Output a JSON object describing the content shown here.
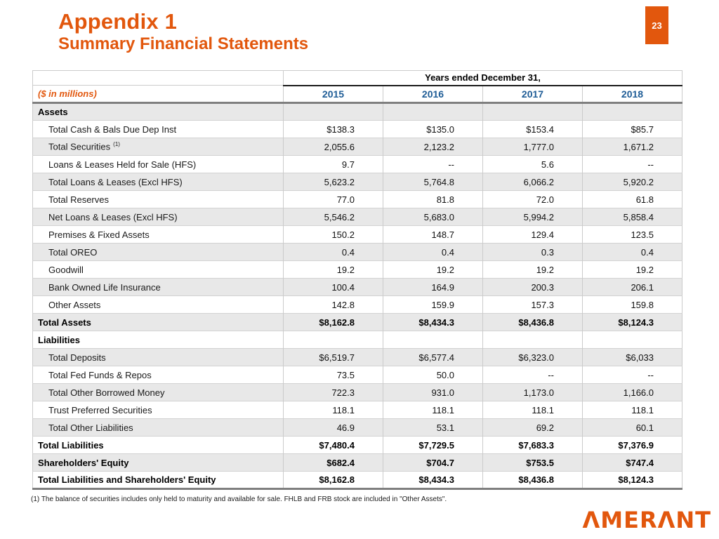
{
  "header": {
    "title_line1": "Appendix 1",
    "title_line2": "Summary Financial Statements",
    "page_number": "23"
  },
  "colors": {
    "accent_orange": "#E2570D",
    "year_blue": "#1E5C96",
    "row_shade": "#E8E8E8"
  },
  "table": {
    "span_header": "Years ended December 31,",
    "unit_label": "($ in millions)",
    "years": [
      "2015",
      "2016",
      "2017",
      "2018"
    ],
    "rows": [
      {
        "label": "Assets",
        "type": "section",
        "shaded": true,
        "values": [
          "",
          "",
          "",
          ""
        ]
      },
      {
        "label": "Total Cash & Bals Due Dep Inst",
        "type": "detail",
        "shaded": false,
        "values": [
          "$138.3",
          "$135.0",
          "$153.4",
          "$85.7"
        ]
      },
      {
        "label": "Total Securities",
        "sup": "(1)",
        "type": "detail",
        "shaded": true,
        "values": [
          "2,055.6",
          "2,123.2",
          "1,777.0",
          "1,671.2"
        ]
      },
      {
        "label": "Loans & Leases Held for Sale (HFS)",
        "type": "detail",
        "shaded": false,
        "values": [
          "9.7",
          "--",
          "5.6",
          "--"
        ]
      },
      {
        "label": "Total Loans & Leases (Excl HFS)",
        "type": "detail",
        "shaded": true,
        "values": [
          "5,623.2",
          "5,764.8",
          "6,066.2",
          "5,920.2"
        ]
      },
      {
        "label": "Total Reserves",
        "type": "detail",
        "shaded": false,
        "values": [
          "77.0",
          "81.8",
          "72.0",
          "61.8"
        ]
      },
      {
        "label": "Net Loans & Leases (Excl HFS)",
        "type": "detail",
        "shaded": true,
        "values": [
          "5,546.2",
          "5,683.0",
          "5,994.2",
          "5,858.4"
        ]
      },
      {
        "label": "Premises & Fixed Assets",
        "type": "detail",
        "shaded": false,
        "values": [
          "150.2",
          "148.7",
          "129.4",
          "123.5"
        ]
      },
      {
        "label": "Total OREO",
        "type": "detail",
        "shaded": true,
        "values": [
          "0.4",
          "0.4",
          "0.3",
          "0.4"
        ]
      },
      {
        "label": "Goodwill",
        "type": "detail",
        "shaded": false,
        "values": [
          "19.2",
          "19.2",
          "19.2",
          "19.2"
        ]
      },
      {
        "label": "Bank Owned Life Insurance",
        "type": "detail",
        "shaded": true,
        "values": [
          "100.4",
          "164.9",
          "200.3",
          "206.1"
        ]
      },
      {
        "label": "Other Assets",
        "type": "detail",
        "shaded": false,
        "values": [
          "142.8",
          "159.9",
          "157.3",
          "159.8"
        ]
      },
      {
        "label": "Total Assets",
        "type": "total",
        "shaded": true,
        "values": [
          "$8,162.8",
          "$8,434.3",
          "$8,436.8",
          "$8,124.3"
        ]
      },
      {
        "label": "Liabilities",
        "type": "section",
        "shaded": false,
        "values": [
          "",
          "",
          "",
          ""
        ]
      },
      {
        "label": "Total Deposits",
        "type": "detail",
        "shaded": true,
        "values": [
          "$6,519.7",
          "$6,577.4",
          "$6,323.0",
          "$6,033"
        ]
      },
      {
        "label": "Total Fed Funds & Repos",
        "type": "detail",
        "shaded": false,
        "values": [
          "73.5",
          "50.0",
          "--",
          "--"
        ]
      },
      {
        "label": "Total Other Borrowed Money",
        "type": "detail",
        "shaded": true,
        "values": [
          "722.3",
          "931.0",
          "1,173.0",
          "1,166.0"
        ]
      },
      {
        "label": "Trust Preferred Securities",
        "type": "detail",
        "shaded": false,
        "values": [
          "118.1",
          "118.1",
          "118.1",
          "118.1"
        ]
      },
      {
        "label": "Total Other Liabilities",
        "type": "detail",
        "shaded": true,
        "values": [
          "46.9",
          "53.1",
          "69.2",
          "60.1"
        ]
      },
      {
        "label": "Total Liabilities",
        "type": "total",
        "shaded": false,
        "values": [
          "$7,480.4",
          "$7,729.5",
          "$7,683.3",
          "$7,376.9"
        ]
      },
      {
        "label": "Shareholders' Equity",
        "type": "total",
        "shaded": true,
        "values": [
          "$682.4",
          "$704.7",
          "$753.5",
          "$747.4"
        ]
      },
      {
        "label": "Total Liabilities and Shareholders' Equity",
        "type": "total",
        "shaded": false,
        "values": [
          "$8,162.8",
          "$8,434.3",
          "$8,436.8",
          "$8,124.3"
        ]
      }
    ]
  },
  "footnote": "(1) The balance of securities includes only held to maturity and available for sale. FHLB and FRB stock are included in \"Other Assets\".",
  "logo": {
    "text": "ΛMERΛNT"
  }
}
